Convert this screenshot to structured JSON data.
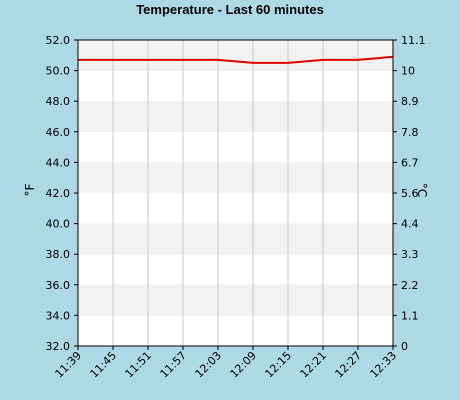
{
  "chart_data": {
    "type": "line",
    "title": "Temperature - Last 60 minutes",
    "ylabel_left": "°F",
    "ylabel_right": "°C",
    "grid": true,
    "legend": "none",
    "x_ticks": [
      "11:39",
      "11:45",
      "11:51",
      "11:57",
      "12:03",
      "12:09",
      "12:15",
      "12:21",
      "12:27",
      "12:33"
    ],
    "x_range_minutes": [
      0,
      54
    ],
    "left_axis": {
      "min": 32.0,
      "max": 52.0,
      "ticks": [
        "32.0",
        "34.0",
        "36.0",
        "38.0",
        "40.0",
        "42.0",
        "44.0",
        "46.0",
        "48.0",
        "50.0",
        "52.0"
      ]
    },
    "right_axis": {
      "ticks": [
        "0",
        "1.1",
        "2.2",
        "3.3",
        "4.4",
        "5.6",
        "6.7",
        "7.8",
        "8.9",
        "10",
        "11.1"
      ]
    },
    "series": [
      {
        "color": "#e00000",
        "points": [
          {
            "t": "11:39",
            "v": 50.7
          },
          {
            "t": "11:45",
            "v": 50.7
          },
          {
            "t": "11:51",
            "v": 50.7
          },
          {
            "t": "11:57",
            "v": 50.7
          },
          {
            "t": "12:03",
            "v": 50.7
          },
          {
            "t": "12:06",
            "v": 50.6
          },
          {
            "t": "12:09",
            "v": 50.5
          },
          {
            "t": "12:15",
            "v": 50.5
          },
          {
            "t": "12:18",
            "v": 50.6
          },
          {
            "t": "12:21",
            "v": 50.7
          },
          {
            "t": "12:27",
            "v": 50.7
          },
          {
            "t": "12:30",
            "v": 50.8
          },
          {
            "t": "12:33",
            "v": 50.9
          }
        ]
      }
    ],
    "colors": {
      "background": "#add8e6",
      "plot_band_light": "#ffffff",
      "plot_band_dark": "#f2f2f2",
      "grid": "#c8c8c8",
      "axis": "#000000"
    }
  }
}
